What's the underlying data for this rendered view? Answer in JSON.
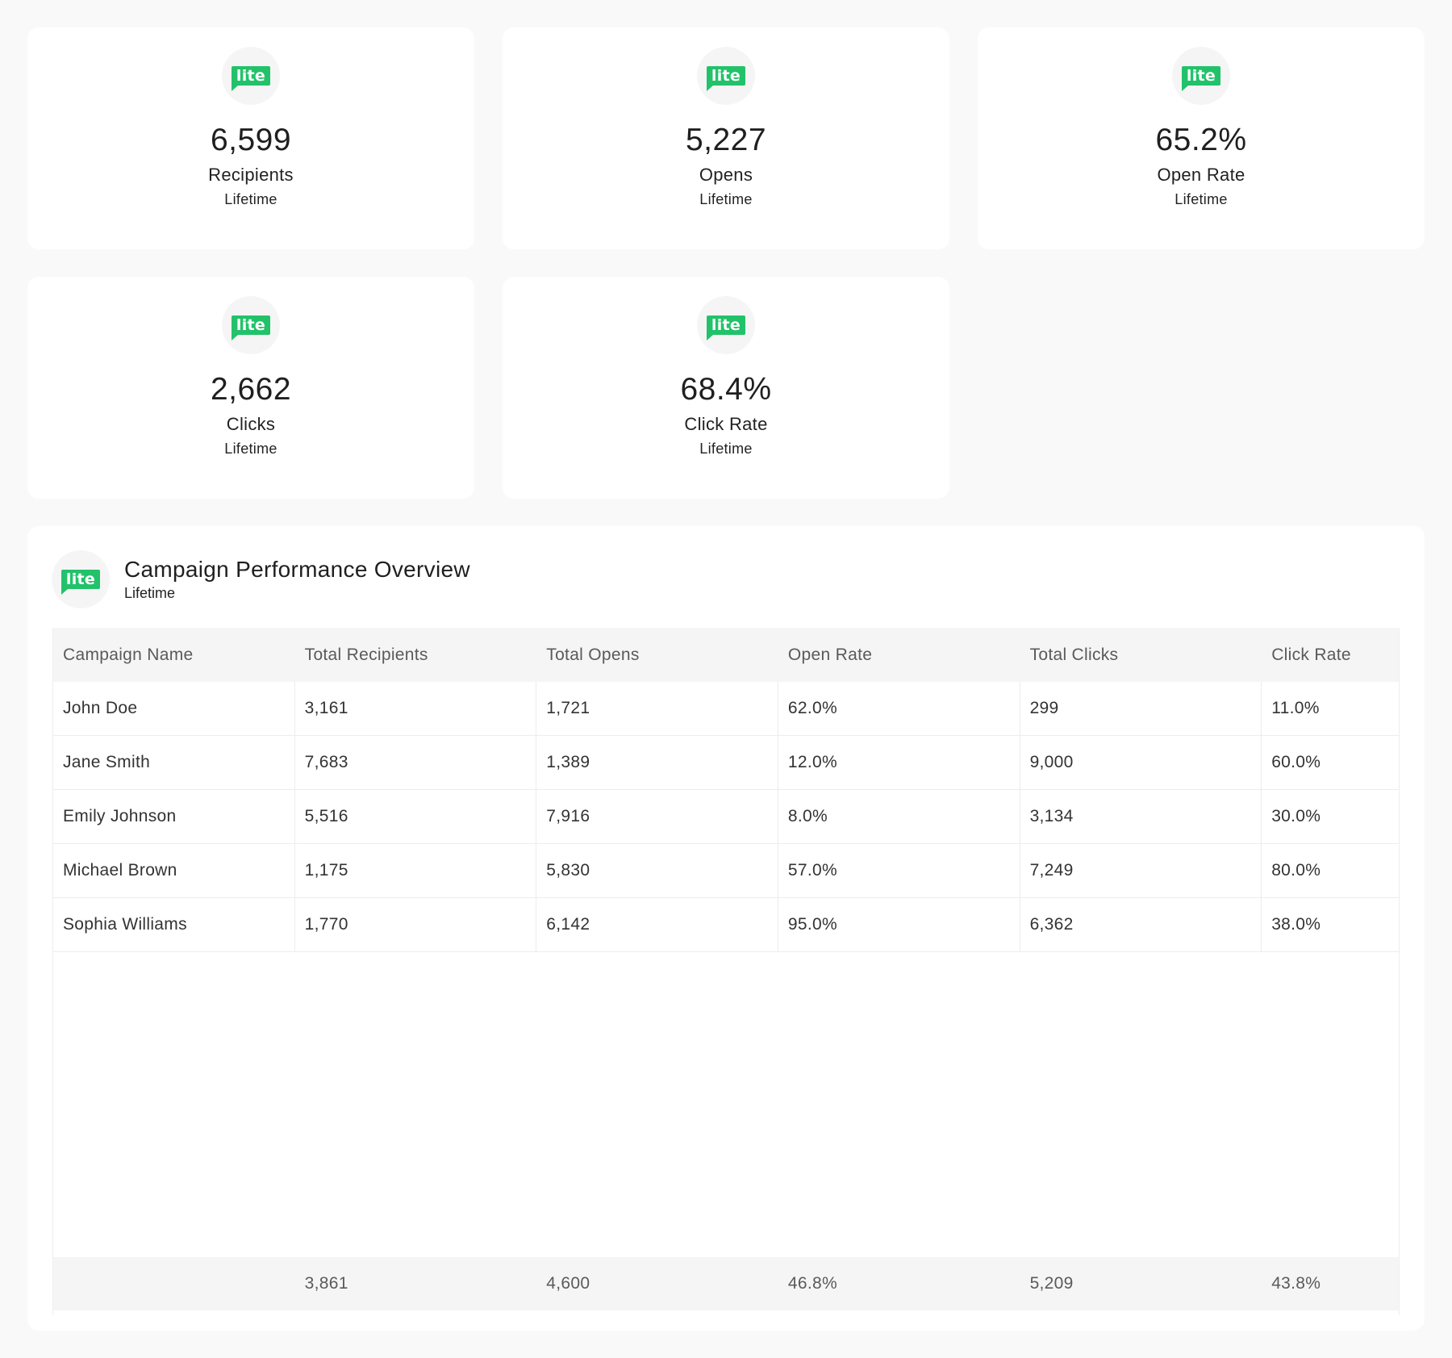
{
  "badge_text": "lite",
  "accent_color": "#22c26a",
  "stats": [
    {
      "value": "6,599",
      "label": "Recipients",
      "period": "Lifetime"
    },
    {
      "value": "5,227",
      "label": "Opens",
      "period": "Lifetime"
    },
    {
      "value": "65.2%",
      "label": "Open Rate",
      "period": "Lifetime"
    },
    {
      "value": "2,662",
      "label": "Clicks",
      "period": "Lifetime"
    },
    {
      "value": "68.4%",
      "label": "Click Rate",
      "period": "Lifetime"
    }
  ],
  "panel": {
    "title": "Campaign Performance Overview",
    "subtitle": "Lifetime"
  },
  "table": {
    "headers": [
      "Campaign Name",
      "Total Recipients",
      "Total Opens",
      "Open Rate",
      "Total Clicks",
      "Click Rate"
    ],
    "rows": [
      [
        "John Doe",
        "3,161",
        "1,721",
        "62.0%",
        "299",
        "11.0%"
      ],
      [
        "Jane Smith",
        "7,683",
        "1,389",
        "12.0%",
        "9,000",
        "60.0%"
      ],
      [
        "Emily Johnson",
        "5,516",
        "7,916",
        "8.0%",
        "3,134",
        "30.0%"
      ],
      [
        "Michael Brown",
        "1,175",
        "5,830",
        "57.0%",
        "7,249",
        "80.0%"
      ],
      [
        "Sophia Williams",
        "1,770",
        "6,142",
        "95.0%",
        "6,362",
        "38.0%"
      ]
    ],
    "footer": [
      "",
      "3,861",
      "4,600",
      "46.8%",
      "5,209",
      "43.8%"
    ]
  }
}
